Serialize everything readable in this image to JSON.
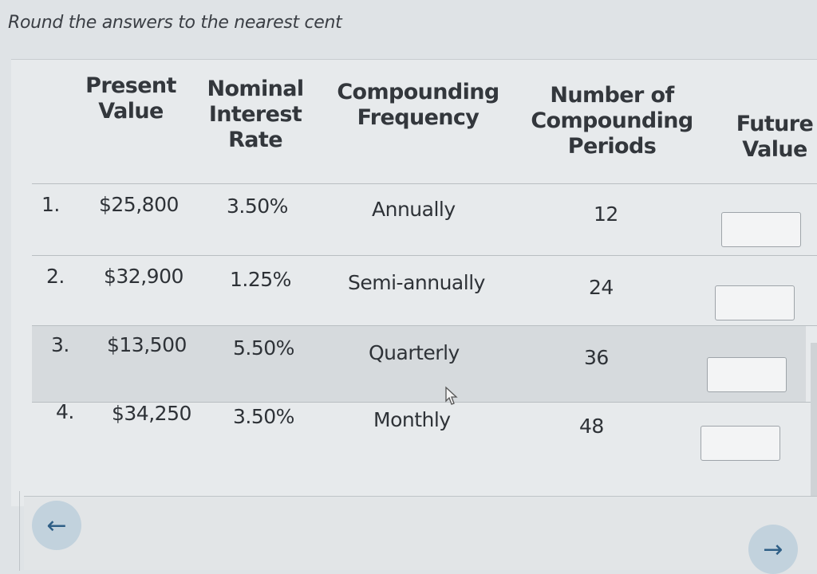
{
  "instruction": "Round the answers to the nearest cent",
  "headers": {
    "present_value": [
      "Present",
      "Value"
    ],
    "nominal_rate": [
      "Nominal",
      "Interest",
      "Rate"
    ],
    "frequency": [
      "Compounding",
      "Frequency"
    ],
    "periods": [
      "Number of",
      "Compounding",
      "Periods"
    ],
    "future_value": [
      "Future",
      "Value"
    ]
  },
  "rows": [
    {
      "num": "1.",
      "pv": "$25,800",
      "rate": "3.50%",
      "freq": "Annually",
      "periods": "12",
      "fv": ""
    },
    {
      "num": "2.",
      "pv": "$32,900",
      "rate": "1.25%",
      "freq": "Semi-annually",
      "periods": "24",
      "fv": ""
    },
    {
      "num": "3.",
      "pv": "$13,500",
      "rate": "5.50%",
      "freq": "Quarterly",
      "periods": "36",
      "fv": ""
    },
    {
      "num": "4.",
      "pv": "$34,250",
      "rate": "3.50%",
      "freq": "Monthly",
      "periods": "48",
      "fv": ""
    }
  ],
  "nav": {
    "back": "←",
    "forward": "→"
  }
}
